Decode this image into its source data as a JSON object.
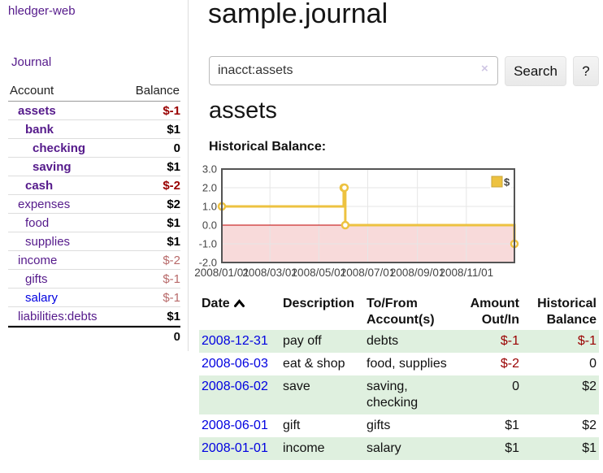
{
  "sidebar": {
    "brand": "hledger-web",
    "nav": {
      "journal_label": "Journal"
    },
    "accounts": {
      "headers": {
        "account": "Account",
        "balance": "Balance"
      },
      "rows": [
        {
          "name": "assets",
          "balance": "$-1",
          "depth": 1,
          "name_style": "bold-purple",
          "balance_style": "neg-strong"
        },
        {
          "name": "bank",
          "balance": "$1",
          "depth": 2,
          "name_style": "bold-purple",
          "balance_style": "pos"
        },
        {
          "name": "checking",
          "balance": "0",
          "depth": 3,
          "name_style": "bold-purple",
          "balance_style": "pos"
        },
        {
          "name": "saving",
          "balance": "$1",
          "depth": 3,
          "name_style": "bold-purple",
          "balance_style": "pos"
        },
        {
          "name": "cash",
          "balance": "$-2",
          "depth": 2,
          "name_style": "bold-purple",
          "balance_style": "neg-strong"
        },
        {
          "name": "expenses",
          "balance": "$2",
          "depth": 1,
          "name_style": "purple",
          "balance_style": "pos"
        },
        {
          "name": "food",
          "balance": "$1",
          "depth": 2,
          "name_style": "purple",
          "balance_style": "pos"
        },
        {
          "name": "supplies",
          "balance": "$1",
          "depth": 2,
          "name_style": "purple",
          "balance_style": "pos"
        },
        {
          "name": "income",
          "balance": "$-2",
          "depth": 1,
          "name_style": "purple",
          "balance_style": "neg-soft"
        },
        {
          "name": "gifts",
          "balance": "$-1",
          "depth": 2,
          "name_style": "purple",
          "balance_style": "neg-soft"
        },
        {
          "name": "salary",
          "balance": "$-1",
          "depth": 2,
          "name_style": "blue",
          "balance_style": "neg-soft"
        },
        {
          "name": "liabilities:debts",
          "balance": "$1",
          "depth": 1,
          "name_style": "purple",
          "balance_style": "pos"
        }
      ],
      "total": "0"
    }
  },
  "main": {
    "title": "sample.journal",
    "search": {
      "value": "inacct:assets",
      "clear_icon": "×",
      "search_button": "Search",
      "help_button": "?"
    },
    "account_heading": "assets",
    "chart_label": "Historical Balance:"
  },
  "chart_data": {
    "type": "line",
    "step": true,
    "title": "Historical Balance",
    "series": [
      {
        "name": "$",
        "color": "#edc240",
        "points": [
          [
            "2008-01-01",
            1
          ],
          [
            "2008-06-01",
            2
          ],
          [
            "2008-06-02",
            2
          ],
          [
            "2008-06-03",
            0
          ],
          [
            "2008-12-31",
            -1
          ]
        ]
      }
    ],
    "xlim": [
      "2008-01-01",
      "2008-12-31"
    ],
    "ylim": [
      -2,
      3
    ],
    "yticks": [
      {
        "value": 3,
        "label": "3.0"
      },
      {
        "value": 2,
        "label": "2.0"
      },
      {
        "value": 1,
        "label": "1.0"
      },
      {
        "value": 0,
        "label": "0.0"
      },
      {
        "value": -1,
        "label": "-1.0"
      },
      {
        "value": -2,
        "label": "-2.0"
      }
    ],
    "xticks": [
      {
        "date": "2008-01-01",
        "label": "2008/01/01"
      },
      {
        "date": "2008-03-01",
        "label": "2008/03/01"
      },
      {
        "date": "2008-05-01",
        "label": "2008/05/01"
      },
      {
        "date": "2008-07-01",
        "label": "2008/07/01"
      },
      {
        "date": "2008-09-01",
        "label": "2008/09/01"
      },
      {
        "date": "2008-11-01",
        "label": "2008/11/01"
      }
    ],
    "legend": {
      "label": "$",
      "position": "top-right"
    },
    "grid": true,
    "colors": {
      "negative_region": "#f8dada",
      "zero_line": "#c00000",
      "gridline": "#e6e6e6",
      "plot_border": "#545454",
      "marker_fill": "#ffffff",
      "tick_text": "#444444"
    }
  },
  "register": {
    "headers": {
      "date": "Date",
      "description": "Description",
      "accounts": "To/From Account(s)",
      "amount": "Amount Out/In",
      "balance": "Historical Balance"
    },
    "rows": [
      {
        "date": "2008-12-31",
        "description": "pay off",
        "accounts": "debts",
        "amount": "$-1",
        "amount_neg": true,
        "balance": "$-1",
        "balance_neg": true
      },
      {
        "date": "2008-06-03",
        "description": "eat & shop",
        "accounts": "food, supplies",
        "amount": "$-2",
        "amount_neg": true,
        "balance": "0",
        "balance_neg": false
      },
      {
        "date": "2008-06-02",
        "description": "save",
        "accounts": "saving, checking",
        "amount": "0",
        "amount_neg": false,
        "balance": "$2",
        "balance_neg": false
      },
      {
        "date": "2008-06-01",
        "description": "gift",
        "accounts": "gifts",
        "amount": "$1",
        "amount_neg": false,
        "balance": "$2",
        "balance_neg": false
      },
      {
        "date": "2008-01-01",
        "description": "income",
        "accounts": "salary",
        "amount": "$1",
        "amount_neg": false,
        "balance": "$1",
        "balance_neg": false
      }
    ]
  },
  "colors": {
    "link_purple": "#551a8b",
    "link_blue": "#0000e0",
    "negative_strong": "#990000",
    "negative_soft": "#b86a6a",
    "row_stripe_green": "#dff0df",
    "series_gold": "#edc240"
  }
}
